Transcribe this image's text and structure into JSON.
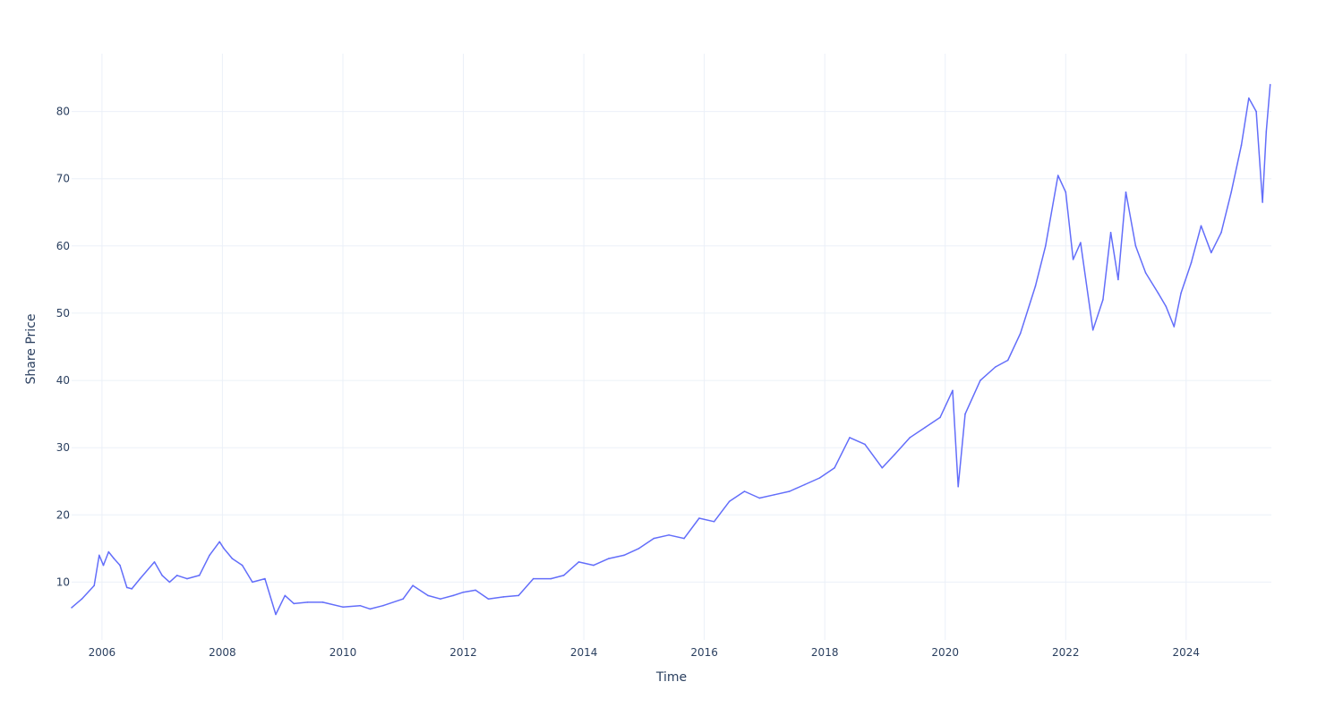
{
  "chart_data": {
    "type": "line",
    "xlabel": "Time",
    "ylabel": "Share Price",
    "xlim": [
      "2005-07-01",
      "2025-06-01"
    ],
    "ylim": [
      1.4,
      88.6
    ],
    "x_ticks": [
      {
        "value": "2006-01-01",
        "label": "2006"
      },
      {
        "value": "2008-01-01",
        "label": "2008"
      },
      {
        "value": "2010-01-01",
        "label": "2010"
      },
      {
        "value": "2012-01-01",
        "label": "2012"
      },
      {
        "value": "2014-01-01",
        "label": "2014"
      },
      {
        "value": "2016-01-01",
        "label": "2016"
      },
      {
        "value": "2018-01-01",
        "label": "2018"
      },
      {
        "value": "2020-01-01",
        "label": "2020"
      },
      {
        "value": "2022-01-01",
        "label": "2022"
      },
      {
        "value": "2024-01-01",
        "label": "2024"
      }
    ],
    "y_ticks": [
      10,
      20,
      30,
      40,
      50,
      60,
      70,
      80
    ],
    "grid": true,
    "legend": "none",
    "color": "#636efa",
    "series": [
      {
        "x": [
          "2005-07-01",
          "2005-09-01",
          "2005-11-15",
          "2005-12-15",
          "2006-01-10",
          "2006-02-10",
          "2006-03-15",
          "2006-04-20",
          "2006-06-01",
          "2006-07-01",
          "2006-08-20",
          "2006-11-15",
          "2007-01-01",
          "2007-02-15",
          "2007-04-01",
          "2007-06-01",
          "2007-08-15",
          "2007-10-15",
          "2007-12-15",
          "2008-01-10",
          "2008-03-01",
          "2008-05-01",
          "2008-07-01",
          "2008-09-15",
          "2008-11-20",
          "2009-01-15",
          "2009-03-10",
          "2009-06-01",
          "2009-09-01",
          "2010-01-01",
          "2010-04-15",
          "2010-06-15",
          "2010-09-01",
          "2011-01-01",
          "2011-03-01",
          "2011-06-01",
          "2011-08-15",
          "2011-11-01",
          "2012-01-01",
          "2012-03-15",
          "2012-06-01",
          "2012-09-01",
          "2012-12-01",
          "2013-03-01",
          "2013-06-15",
          "2013-09-01",
          "2013-12-01",
          "2014-03-01",
          "2014-06-01",
          "2014-09-01",
          "2014-12-01",
          "2015-03-01",
          "2015-06-01",
          "2015-09-01",
          "2015-12-01",
          "2016-03-01",
          "2016-06-01",
          "2016-09-01",
          "2016-12-01",
          "2017-03-01",
          "2017-06-01",
          "2017-09-01",
          "2017-12-01",
          "2018-03-01",
          "2018-06-01",
          "2018-09-01",
          "2018-12-15",
          "2019-03-01",
          "2019-06-01",
          "2019-09-01",
          "2019-12-01",
          "2020-02-15",
          "2020-03-20",
          "2020-05-01",
          "2020-08-01",
          "2020-11-01",
          "2021-01-15",
          "2021-04-01",
          "2021-07-01",
          "2021-09-01",
          "2021-11-15",
          "2022-01-01",
          "2022-02-15",
          "2022-04-01",
          "2022-06-15",
          "2022-08-15",
          "2022-10-01",
          "2022-11-15",
          "2023-01-01",
          "2023-03-01",
          "2023-05-01",
          "2023-07-15",
          "2023-09-01",
          "2023-10-20",
          "2023-12-01",
          "2024-02-01",
          "2024-04-01",
          "2024-06-01",
          "2024-08-01",
          "2024-10-01",
          "2024-12-01",
          "2025-01-15",
          "2025-03-01",
          "2025-04-08",
          "2025-05-01",
          "2025-05-25"
        ],
        "y": [
          6.2,
          7.5,
          9.5,
          14.0,
          12.5,
          14.5,
          13.5,
          12.5,
          9.2,
          9.0,
          10.5,
          13.0,
          11.0,
          10.0,
          11.0,
          10.5,
          11.0,
          14.0,
          16.0,
          15.0,
          13.5,
          12.5,
          10.0,
          10.5,
          5.2,
          8.0,
          6.8,
          7.0,
          7.0,
          6.3,
          6.5,
          6.0,
          6.5,
          7.5,
          9.5,
          8.0,
          7.5,
          8.0,
          8.5,
          8.8,
          7.5,
          7.8,
          8.0,
          10.5,
          10.5,
          11.0,
          13.0,
          12.5,
          13.5,
          14.0,
          15.0,
          16.5,
          17.0,
          16.5,
          19.5,
          19.0,
          22.0,
          23.5,
          22.5,
          23.0,
          23.5,
          24.5,
          25.5,
          27.0,
          31.5,
          30.5,
          27.0,
          29.0,
          31.5,
          33.0,
          34.5,
          38.5,
          24.2,
          35.0,
          40.0,
          42.0,
          43.0,
          47.0,
          54.0,
          60.0,
          70.5,
          68.0,
          58.0,
          60.5,
          47.5,
          52.0,
          62.0,
          55.0,
          68.0,
          60.0,
          56.0,
          53.0,
          51.0,
          48.0,
          53.0,
          57.5,
          63.0,
          59.0,
          62.0,
          68.0,
          75.0,
          82.0,
          80.0,
          66.5,
          77.0,
          84.0
        ]
      }
    ]
  }
}
